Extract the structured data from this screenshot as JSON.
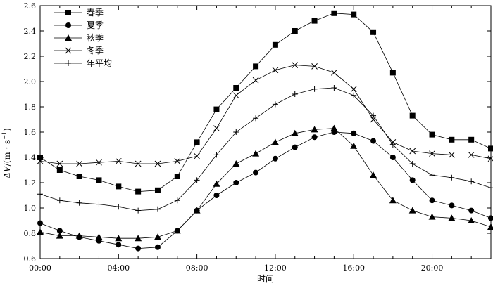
{
  "chart_data": {
    "type": "line",
    "title": "",
    "xlabel": "时间",
    "ylabel_main": "ΔV",
    "ylabel_unit": "/(m · s",
    "ylabel_exp": "−1",
    "ylabel_close": ")",
    "xlim": [
      0,
      23
    ],
    "ylim": [
      0.6,
      2.6
    ],
    "x": [
      0,
      1,
      2,
      3,
      4,
      5,
      6,
      7,
      8,
      9,
      10,
      11,
      12,
      13,
      14,
      15,
      16,
      17,
      18,
      19,
      20,
      21,
      22,
      23
    ],
    "x_ticks": [
      {
        "value": 0,
        "label": "00:00"
      },
      {
        "value": 4,
        "label": "04:00"
      },
      {
        "value": 8,
        "label": "08:00"
      },
      {
        "value": 12,
        "label": "12:00"
      },
      {
        "value": 16,
        "label": "16:00"
      },
      {
        "value": 20,
        "label": "20:00"
      }
    ],
    "y_ticks": [
      {
        "value": 0.6,
        "label": "0.6"
      },
      {
        "value": 0.8,
        "label": "0.8"
      },
      {
        "value": 1.0,
        "label": "1.0"
      },
      {
        "value": 1.2,
        "label": "1.2"
      },
      {
        "value": 1.4,
        "label": "1.4"
      },
      {
        "value": 1.6,
        "label": "1.6"
      },
      {
        "value": 1.8,
        "label": "1.8"
      },
      {
        "value": 2.0,
        "label": "2.0"
      },
      {
        "value": 2.2,
        "label": "2.2"
      },
      {
        "value": 2.4,
        "label": "2.4"
      },
      {
        "value": 2.6,
        "label": "2.6"
      }
    ],
    "legend_position": "top-left",
    "series": [
      {
        "name": "春季",
        "marker": "square",
        "values": [
          1.4,
          1.3,
          1.25,
          1.22,
          1.17,
          1.13,
          1.14,
          1.25,
          1.52,
          1.78,
          1.95,
          2.12,
          2.29,
          2.4,
          2.48,
          2.54,
          2.53,
          2.39,
          2.07,
          1.73,
          1.58,
          1.54,
          1.54,
          1.47
        ]
      },
      {
        "name": "夏季",
        "marker": "circle",
        "values": [
          0.88,
          0.82,
          0.77,
          0.74,
          0.71,
          0.68,
          0.69,
          0.82,
          0.98,
          1.1,
          1.2,
          1.28,
          1.39,
          1.48,
          1.56,
          1.6,
          1.59,
          1.53,
          1.4,
          1.22,
          1.06,
          1.02,
          0.98,
          0.92
        ]
      },
      {
        "name": "秋季",
        "marker": "triangle",
        "values": [
          0.81,
          0.78,
          0.78,
          0.77,
          0.76,
          0.76,
          0.77,
          0.82,
          0.98,
          1.19,
          1.35,
          1.43,
          1.52,
          1.59,
          1.62,
          1.63,
          1.49,
          1.26,
          1.06,
          0.98,
          0.93,
          0.92,
          0.9,
          0.85
        ]
      },
      {
        "name": "冬季",
        "marker": "x",
        "values": [
          1.37,
          1.35,
          1.35,
          1.36,
          1.37,
          1.35,
          1.35,
          1.37,
          1.41,
          1.63,
          1.89,
          2.01,
          2.09,
          2.13,
          2.12,
          2.07,
          1.94,
          1.7,
          1.52,
          1.45,
          1.43,
          1.42,
          1.42,
          1.39
        ]
      },
      {
        "name": "年平均",
        "marker": "plus",
        "values": [
          1.11,
          1.06,
          1.04,
          1.03,
          1.01,
          0.98,
          0.99,
          1.06,
          1.22,
          1.42,
          1.6,
          1.71,
          1.82,
          1.9,
          1.94,
          1.95,
          1.89,
          1.73,
          1.5,
          1.35,
          1.26,
          1.24,
          1.21,
          1.16
        ]
      }
    ]
  }
}
